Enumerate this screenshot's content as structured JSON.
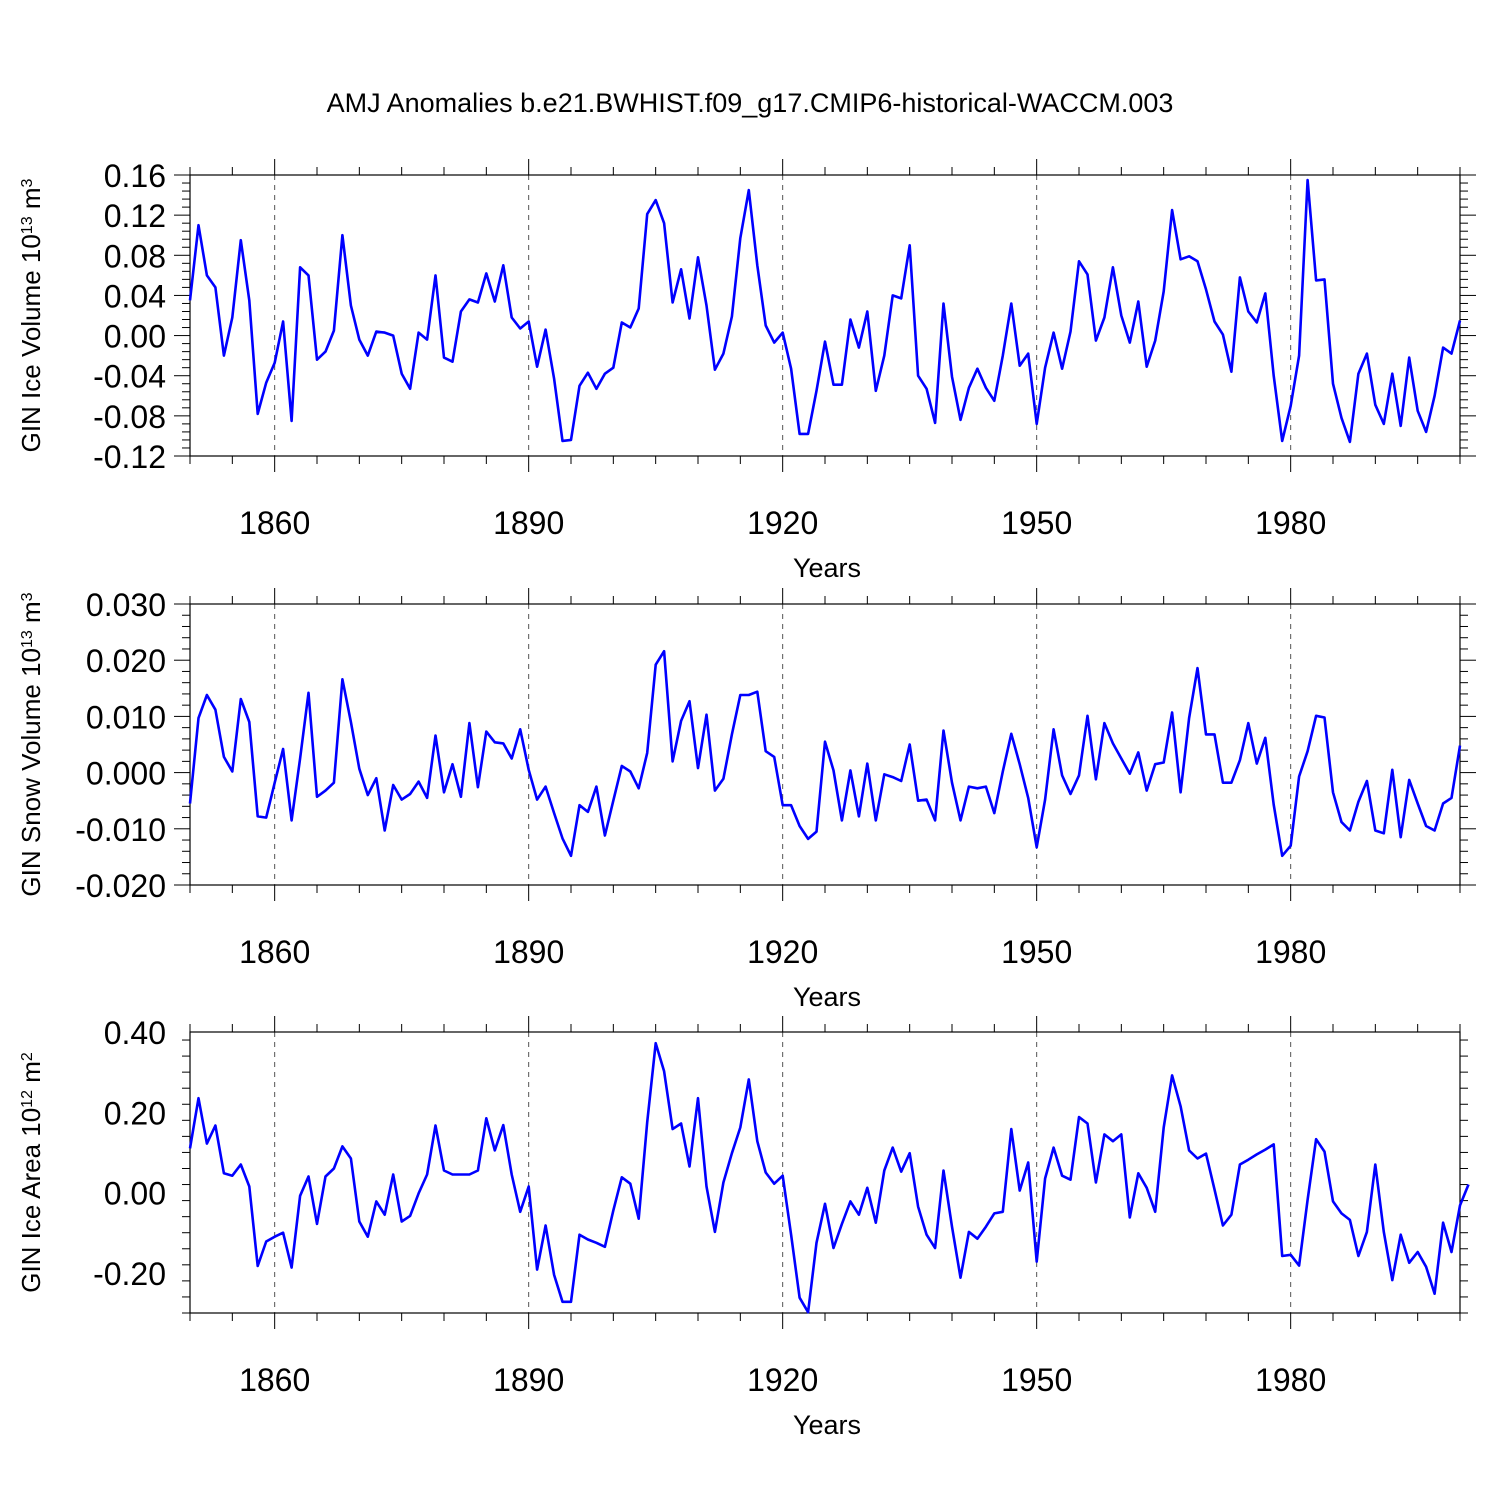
{
  "title": "AMJ Anomalies b.e21.BWHIST.f09_g17.CMIP6-historical-WACCM.003",
  "colors": {
    "line": "#0000ff",
    "axis": "#000000",
    "grid": "#555555"
  },
  "chart_data": [
    {
      "type": "line",
      "ylabel": "GIN Ice Volume 10",
      "ylabel_exp": "13",
      "ylabel_unit": " m",
      "ylabel_unit_exp": "3",
      "xlabel": "Years",
      "xlim": [
        1850,
        2000
      ],
      "ylim": [
        -0.12,
        0.16
      ],
      "yticks": [
        -0.12,
        -0.08,
        -0.04,
        0.0,
        0.04,
        0.08,
        0.12,
        0.16
      ],
      "ytick_labels": [
        "-0.12",
        "-0.08",
        "-0.04",
        "0.00",
        "0.04",
        "0.08",
        "0.12",
        "0.16"
      ],
      "xticks": [
        1860,
        1890,
        1920,
        1950,
        1980
      ],
      "xtick_labels": [
        "1860",
        "1890",
        "1920",
        "1950",
        "1980"
      ],
      "x_start": 1850,
      "series": [
        {
          "name": "GIN Ice Volume",
          "values": [
            0.035,
            0.11,
            0.06,
            0.048,
            -0.02,
            0.018,
            0.095,
            0.035,
            -0.078,
            -0.047,
            -0.027,
            0.014,
            -0.085,
            0.068,
            0.06,
            -0.024,
            -0.016,
            0.005,
            0.1,
            0.03,
            -0.004,
            -0.02,
            0.004,
            0.003,
            0.0,
            -0.038,
            -0.053,
            0.003,
            -0.004,
            0.06,
            -0.022,
            -0.026,
            0.024,
            0.036,
            0.033,
            0.062,
            0.034,
            0.07,
            0.018,
            0.007,
            0.014,
            -0.031,
            0.006,
            -0.043,
            -0.105,
            -0.104,
            -0.05,
            -0.037,
            -0.053,
            -0.038,
            -0.032,
            0.013,
            0.008,
            0.027,
            0.121,
            0.135,
            0.112,
            0.033,
            0.066,
            0.017,
            0.078,
            0.03,
            -0.034,
            -0.018,
            0.019,
            0.097,
            0.145,
            0.07,
            0.01,
            -0.007,
            0.003,
            -0.033,
            -0.098,
            -0.098,
            -0.055,
            -0.006,
            -0.049,
            -0.049,
            0.016,
            -0.012,
            0.024,
            -0.055,
            -0.02,
            0.04,
            0.037,
            0.09,
            -0.04,
            -0.053,
            -0.087,
            0.032,
            -0.041,
            -0.084,
            -0.052,
            -0.033,
            -0.052,
            -0.065,
            -0.02,
            0.032,
            -0.03,
            -0.018,
            -0.088,
            -0.032,
            0.003,
            -0.033,
            0.004,
            0.074,
            0.061,
            -0.005,
            0.018,
            0.068,
            0.02,
            -0.007,
            0.034,
            -0.031,
            -0.005,
            0.044,
            0.125,
            0.076,
            0.079,
            0.074,
            0.046,
            0.014,
            0.001,
            -0.036,
            0.058,
            0.024,
            0.013,
            0.042,
            -0.04,
            -0.105,
            -0.07,
            -0.02,
            0.155,
            0.055,
            0.056,
            -0.048,
            -0.082,
            -0.106,
            -0.038,
            -0.018,
            -0.069,
            -0.088,
            -0.038,
            -0.09,
            -0.022,
            -0.075,
            -0.096,
            -0.06,
            -0.012,
            -0.018,
            0.015
          ]
        }
      ]
    },
    {
      "type": "line",
      "ylabel": "GIN Snow Volume 10",
      "ylabel_exp": "13",
      "ylabel_unit": " m",
      "ylabel_unit_exp": "3",
      "xlabel": "Years",
      "xlim": [
        1850,
        2000
      ],
      "ylim": [
        -0.02,
        0.03
      ],
      "yticks": [
        -0.02,
        -0.01,
        0.0,
        0.01,
        0.02,
        0.03
      ],
      "ytick_labels": [
        "-0.020",
        "-0.010",
        "0.000",
        "0.010",
        "0.020",
        "0.030"
      ],
      "xticks": [
        1860,
        1890,
        1920,
        1950,
        1980
      ],
      "xtick_labels": [
        "1860",
        "1890",
        "1920",
        "1950",
        "1980"
      ],
      "x_start": 1850,
      "series": [
        {
          "name": "GIN Snow Volume",
          "values": [
            -0.0055,
            0.0097,
            0.0138,
            0.0112,
            0.0028,
            0.0002,
            0.0131,
            0.009,
            -0.0078,
            -0.008,
            -0.0018,
            0.0042,
            -0.0085,
            0.0025,
            0.0142,
            -0.0043,
            -0.0032,
            -0.0018,
            0.0166,
            0.009,
            0.0007,
            -0.004,
            -0.001,
            -0.0103,
            -0.0022,
            -0.0048,
            -0.0038,
            -0.0016,
            -0.0045,
            0.0066,
            -0.0035,
            0.0015,
            -0.0043,
            0.0088,
            -0.0026,
            0.0073,
            0.0054,
            0.0052,
            0.0025,
            0.0077,
            0.0005,
            -0.0048,
            -0.0025,
            -0.0072,
            -0.0117,
            -0.0148,
            -0.0058,
            -0.007,
            -0.0025,
            -0.0112,
            -0.005,
            0.0012,
            0.0002,
            -0.0028,
            0.0035,
            0.0192,
            0.0216,
            0.002,
            0.0092,
            0.0127,
            0.0008,
            0.0103,
            -0.0032,
            -0.0011,
            0.0068,
            0.0138,
            0.0138,
            0.0144,
            0.0038,
            0.0028,
            -0.0058,
            -0.0058,
            -0.0095,
            -0.0118,
            -0.0105,
            0.0055,
            0.0004,
            -0.0085,
            0.0004,
            -0.0078,
            0.0016,
            -0.0085,
            -0.0003,
            -0.0008,
            -0.0015,
            0.005,
            -0.005,
            -0.0048,
            -0.0085,
            0.0075,
            -0.0018,
            -0.0085,
            -0.0025,
            -0.0028,
            -0.0025,
            -0.0072,
            0.0002,
            0.0069,
            0.0015,
            -0.0045,
            -0.0133,
            -0.0048,
            0.0077,
            -0.0005,
            -0.0038,
            -0.0005,
            0.0101,
            -0.0012,
            0.0088,
            0.0052,
            0.0025,
            -0.0002,
            0.0036,
            -0.0032,
            0.0015,
            0.0018,
            0.0107,
            -0.0035,
            0.0097,
            0.0186,
            0.0068,
            0.0068,
            -0.0018,
            -0.0018,
            0.0022,
            0.0088,
            0.0016,
            0.0062,
            -0.0057,
            -0.0148,
            -0.013,
            -0.0007,
            0.0038,
            0.0101,
            0.0098,
            -0.0035,
            -0.0088,
            -0.0103,
            -0.0052,
            -0.0015,
            -0.0103,
            -0.0108,
            0.0005,
            -0.0115,
            -0.0013,
            -0.0055,
            -0.0095,
            -0.0103,
            -0.0055,
            -0.0045,
            0.0048
          ]
        }
      ]
    },
    {
      "type": "line",
      "ylabel": "GIN Ice Area 10",
      "ylabel_exp": "12",
      "ylabel_unit": " m",
      "ylabel_unit_exp": "2",
      "xlabel": "Years",
      "xlim": [
        1850,
        2000
      ],
      "ylim": [
        -0.3,
        0.4
      ],
      "yticks": [
        -0.2,
        0.0,
        0.2,
        0.4
      ],
      "ytick_labels": [
        "-0.20",
        "0.00",
        "0.20",
        "0.40"
      ],
      "xticks": [
        1860,
        1890,
        1920,
        1950,
        1980
      ],
      "xtick_labels": [
        "1860",
        "1890",
        "1920",
        "1950",
        "1980"
      ],
      "x_start": 1850,
      "series": [
        {
          "name": "GIN Ice Area",
          "values": [
            0.11,
            0.235,
            0.122,
            0.167,
            0.048,
            0.042,
            0.07,
            0.015,
            -0.183,
            -0.122,
            -0.11,
            -0.1,
            -0.187,
            -0.008,
            0.04,
            -0.078,
            0.04,
            0.06,
            0.115,
            0.085,
            -0.072,
            -0.11,
            -0.022,
            -0.055,
            0.045,
            -0.072,
            -0.058,
            -0.002,
            0.045,
            0.167,
            0.055,
            0.045,
            0.045,
            0.045,
            0.055,
            0.185,
            0.105,
            0.168,
            0.045,
            -0.048,
            0.015,
            -0.192,
            -0.082,
            -0.205,
            -0.272,
            -0.272,
            -0.105,
            -0.117,
            -0.125,
            -0.135,
            -0.045,
            0.038,
            0.022,
            -0.065,
            0.175,
            0.372,
            0.302,
            0.158,
            0.172,
            0.065,
            0.235,
            0.015,
            -0.098,
            0.025,
            0.098,
            0.162,
            0.282,
            0.128,
            0.05,
            0.022,
            0.042,
            -0.105,
            -0.262,
            -0.298,
            -0.125,
            -0.028,
            -0.138,
            -0.078,
            -0.022,
            -0.055,
            0.012,
            -0.075,
            0.055,
            0.112,
            0.052,
            0.098,
            -0.035,
            -0.105,
            -0.138,
            0.055,
            -0.085,
            -0.212,
            -0.098,
            -0.115,
            -0.085,
            -0.052,
            -0.048,
            0.158,
            0.005,
            0.075,
            -0.172,
            0.035,
            0.112,
            0.042,
            0.032,
            0.188,
            0.172,
            0.025,
            0.145,
            0.128,
            0.145,
            -0.062,
            0.048,
            0.012,
            -0.048,
            0.162,
            0.292,
            0.215,
            0.105,
            0.085,
            0.097,
            0.008,
            -0.082,
            -0.055,
            0.07,
            0.082,
            0.095,
            0.107,
            0.12,
            -0.158,
            -0.155,
            -0.182,
            -0.018,
            0.133,
            0.102,
            -0.022,
            -0.052,
            -0.068,
            -0.158,
            -0.098,
            0.07,
            -0.098,
            -0.218,
            -0.105,
            -0.175,
            -0.148,
            -0.185,
            -0.252,
            -0.075,
            -0.148,
            -0.032,
            0.02
          ]
        }
      ]
    }
  ]
}
